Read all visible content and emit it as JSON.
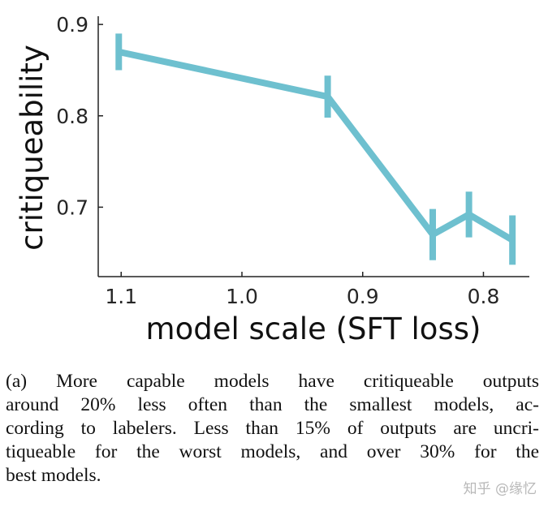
{
  "chart_data": {
    "type": "line",
    "xlabel": "model scale (SFT loss)",
    "ylabel": "critiqueability",
    "x_reversed": true,
    "xlim": [
      1.119,
      0.762
    ],
    "ylim": [
      0.624,
      0.909
    ],
    "xticks": [
      1.1,
      1.0,
      0.9,
      0.8
    ],
    "xtick_labels": [
      "1.1",
      "1.0",
      "0.9",
      "0.8"
    ],
    "yticks": [
      0.9,
      0.8,
      0.7
    ],
    "ytick_labels": [
      "0.9",
      "0.8",
      "0.7"
    ],
    "grid": false,
    "color": "#6ec0cf",
    "series": [
      {
        "x": [
          1.102,
          0.929,
          0.842,
          0.812,
          0.776
        ],
        "y": [
          0.87,
          0.821,
          0.67,
          0.692,
          0.664
        ],
        "yerr": [
          0.02,
          0.023,
          0.028,
          0.025,
          0.027
        ]
      }
    ]
  },
  "caption": {
    "lines": [
      "(a) More capable models have critiqueable outputs",
      "around 20% less often than the smallest models, ac-",
      "cording to labelers. Less than 15% of outputs are uncri-",
      "tiqueable for the worst models, and over 30% for the",
      "best models."
    ]
  },
  "watermark": "知乎 @缘忆"
}
